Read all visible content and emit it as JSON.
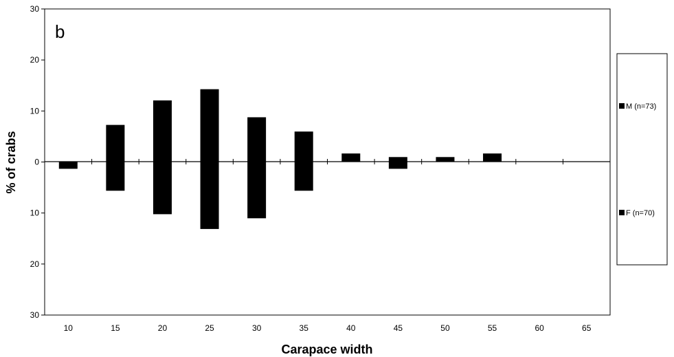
{
  "chart_data": {
    "type": "bar",
    "panel_label": "b",
    "xlabel": "Carapace width",
    "ylabel": "% of crabs",
    "categories": [
      "10",
      "15",
      "20",
      "25",
      "30",
      "35",
      "40",
      "45",
      "50",
      "55",
      "60",
      "65"
    ],
    "yticks": [
      "30",
      "20",
      "10",
      "0",
      "10",
      "20",
      "30"
    ],
    "ylim": [
      -30,
      30
    ],
    "series": [
      {
        "name": "M (n=73)",
        "values": [
          0,
          7.2,
          12,
          14.2,
          8.7,
          5.9,
          1.6,
          0.9,
          0.9,
          1.6,
          0,
          0
        ]
      },
      {
        "name": "F (n=70)",
        "values": [
          1.4,
          5.7,
          10.3,
          13.2,
          11.1,
          5.7,
          0,
          1.4,
          0,
          0,
          0,
          0
        ]
      }
    ],
    "legend_position": "right",
    "grid": false,
    "colors": {
      "bars": "#000000",
      "axis": "#000000"
    }
  }
}
